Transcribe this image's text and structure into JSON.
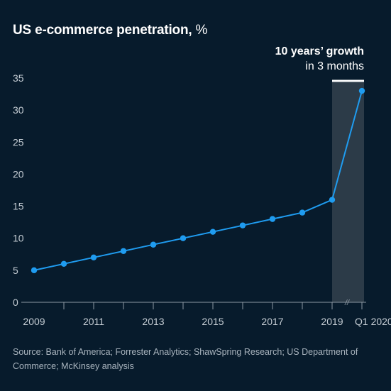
{
  "title": "US e-commerce penetration,",
  "title_unit": "%",
  "highlight": {
    "headline": "10 years’ growth",
    "subline": "in 3 months"
  },
  "source_note": "Source: Bank of America; Forrester Analytics; ShawSpring Research; US Department of Commerce; McKinsey analysis",
  "colors": {
    "background": "#071b2c",
    "line": "#1f9cf0",
    "highlight_band": "#2c3b48",
    "axis": "#8e99a3",
    "tick_text": "#c4ccd3"
  },
  "chart_data": {
    "type": "line",
    "title": "US e-commerce penetration, %",
    "ylim": [
      0,
      35
    ],
    "yticks": [
      0,
      5,
      10,
      15,
      20,
      25,
      30,
      35
    ],
    "x_tick_labels": [
      "2009",
      "2011",
      "2013",
      "2015",
      "2017",
      "2019",
      "Q1 2020"
    ],
    "axis_break_marker": "//",
    "highlight_range": [
      "2019",
      "Q1 2020"
    ],
    "series": [
      {
        "x": [
          "2009",
          "2010",
          "2011",
          "2012",
          "2013",
          "2014",
          "2015",
          "2016",
          "2017",
          "2018",
          "2019",
          "Q1 2020"
        ],
        "values": [
          5.0,
          6.0,
          7.0,
          8.0,
          9.0,
          10.0,
          11.0,
          12.0,
          13.0,
          14.0,
          16.0,
          33.0
        ]
      }
    ]
  }
}
